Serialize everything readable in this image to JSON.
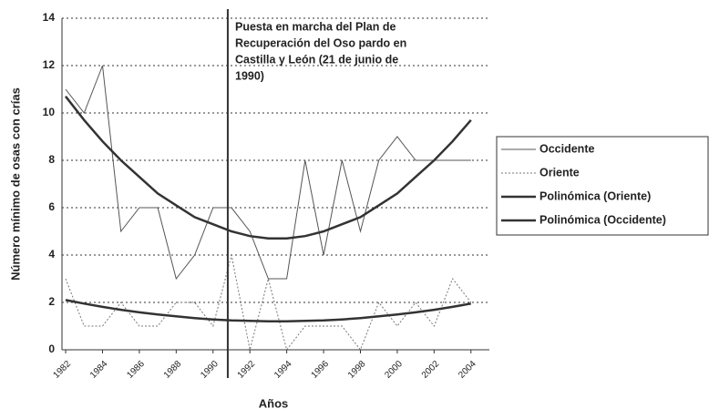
{
  "chart_data": {
    "type": "line",
    "xlabel": "Años",
    "ylabel": "Número mínimo de osas con crías",
    "x": [
      1982,
      1983,
      1984,
      1985,
      1986,
      1987,
      1988,
      1989,
      1990,
      1991,
      1992,
      1993,
      1994,
      1995,
      1996,
      1997,
      1998,
      1999,
      2000,
      2001,
      2002,
      2003,
      2004
    ],
    "series": [
      {
        "name": "Occidente",
        "color": "#555555",
        "style": "solid",
        "width": 1,
        "values": [
          11,
          10,
          12,
          5,
          6,
          6,
          3,
          4,
          6,
          6,
          5,
          3,
          3,
          8,
          4,
          8,
          5,
          8,
          9,
          8,
          8,
          8,
          8
        ]
      },
      {
        "name": "Oriente",
        "color": "#777777",
        "style": "dotted",
        "width": 1,
        "values": [
          3,
          1,
          1,
          2,
          1,
          1,
          2,
          2,
          1,
          4,
          0,
          3,
          0,
          1,
          1,
          1,
          0,
          2,
          1,
          2,
          1,
          3,
          2
        ]
      },
      {
        "name": "Polinómica (Oriente)",
        "color": "#333333",
        "style": "solid",
        "width": 2.5,
        "values": [
          2.1,
          1.95,
          1.81,
          1.69,
          1.58,
          1.49,
          1.41,
          1.34,
          1.28,
          1.24,
          1.22,
          1.2,
          1.2,
          1.22,
          1.24,
          1.28,
          1.34,
          1.41,
          1.49,
          1.58,
          1.69,
          1.81,
          1.95
        ]
      },
      {
        "name": "Polinómica (Occidente)",
        "color": "#333333",
        "style": "solid",
        "width": 2.5,
        "values": [
          10.7,
          9.7,
          8.8,
          8.0,
          7.3,
          6.6,
          6.1,
          5.6,
          5.3,
          5.0,
          4.8,
          4.7,
          4.7,
          4.8,
          5.0,
          5.3,
          5.6,
          6.1,
          6.6,
          7.3,
          8.0,
          8.8,
          9.7
        ]
      }
    ],
    "xlim": [
      1981.8,
      2005
    ],
    "xticks": [
      1982,
      1984,
      1986,
      1988,
      1990,
      1992,
      1994,
      1996,
      1998,
      2000,
      2002,
      2004
    ],
    "ylim": [
      0,
      14
    ],
    "yticks": [
      0,
      2,
      4,
      6,
      8,
      10,
      12,
      14
    ],
    "grid": true,
    "legend": "right",
    "event_x": 1990.8,
    "annotation": [
      "Puesta en marcha del Plan de",
      "Recuperación del Oso pardo en",
      "Castilla y León (21 de junio de",
      "1990)"
    ]
  }
}
